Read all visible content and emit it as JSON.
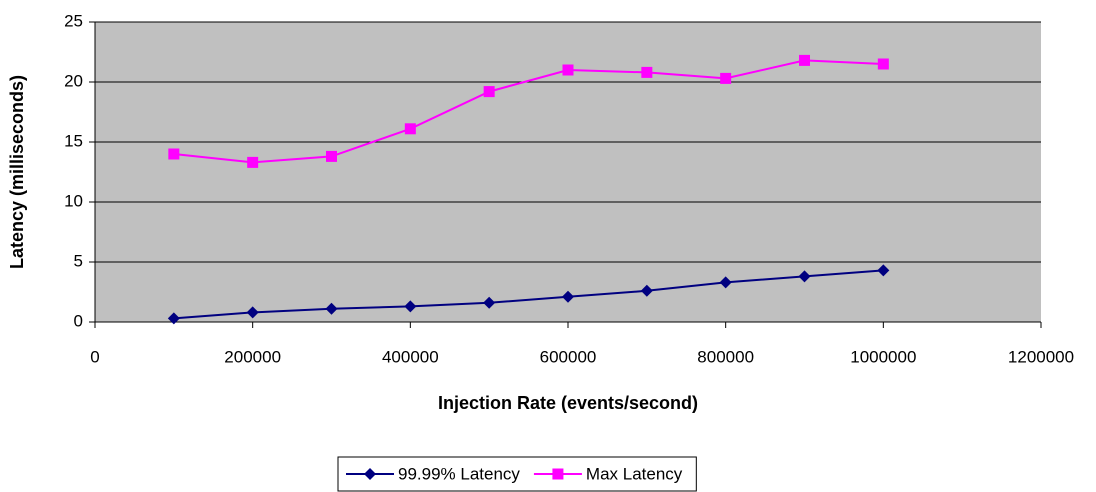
{
  "chart_data": {
    "type": "line",
    "x_label": "Injection Rate (events/second)",
    "y_label": "Latency (milliseconds)",
    "x": [
      100000,
      200000,
      300000,
      400000,
      500000,
      600000,
      700000,
      800000,
      900000,
      1000000
    ],
    "series": [
      {
        "name": "99.99% Latency",
        "color": "#000080",
        "marker": "diamond",
        "values": [
          0.3,
          0.8,
          1.1,
          1.3,
          1.6,
          2.1,
          2.6,
          3.3,
          3.8,
          4.3
        ]
      },
      {
        "name": "Max Latency",
        "color": "#ff00ff",
        "marker": "square",
        "values": [
          14.0,
          13.3,
          13.8,
          16.1,
          19.2,
          21.0,
          20.8,
          20.3,
          21.8,
          21.5
        ]
      }
    ],
    "xlim": [
      0,
      1200000
    ],
    "xticks": [
      0,
      200000,
      400000,
      600000,
      800000,
      1000000,
      1200000
    ],
    "ylim": [
      0,
      25
    ],
    "yticks": [
      0,
      5,
      10,
      15,
      20,
      25
    ],
    "grid": true,
    "plot_background": "#c0c0c0",
    "legend": "bottom"
  }
}
